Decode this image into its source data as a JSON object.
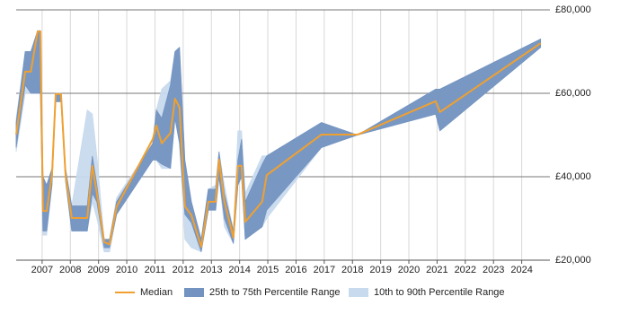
{
  "chart_data": {
    "type": "line",
    "x": [
      2006.08,
      2006.4,
      2006.6,
      2006.84,
      2006.94,
      2007.03,
      2007.16,
      2007.35,
      2007.48,
      2007.67,
      2007.83,
      2008.05,
      2008.6,
      2008.78,
      2008.94,
      2009.2,
      2009.39,
      2009.64,
      2010.92,
      2011.05,
      2011.24,
      2011.55,
      2011.71,
      2011.87,
      2012.06,
      2012.29,
      2012.64,
      2012.89,
      2013.15,
      2013.27,
      2013.46,
      2013.78,
      2013.94,
      2014.07,
      2014.2,
      2014.8,
      2014.96,
      2016.9,
      2018.18,
      2020.95,
      2021.1,
      2024.67
    ],
    "series": [
      {
        "name": "Median",
        "color": "#f0a030",
        "values": [
          50100,
          65200,
          65200,
          74800,
          74800,
          31800,
          31800,
          40400,
          59800,
          59800,
          40400,
          30100,
          30100,
          42600,
          36100,
          24300,
          23800,
          32800,
          49000,
          52300,
          48000,
          50500,
          58700,
          56600,
          32900,
          30800,
          23200,
          34000,
          34000,
          44100,
          34000,
          25400,
          42600,
          42600,
          29200,
          34000,
          40400,
          50100,
          50100,
          58100,
          55500,
          72000
        ]
      },
      {
        "name": "25th to 75th Percentile Range",
        "color": "#7393c0",
        "low": [
          47000,
          62000,
          60000,
          60000,
          60000,
          27000,
          27000,
          38000,
          58000,
          58000,
          39000,
          27000,
          27000,
          36000,
          34000,
          23000,
          23000,
          31000,
          44000,
          44000,
          43000,
          42000,
          54000,
          48000,
          31000,
          29000,
          22000,
          32000,
          32000,
          40000,
          30000,
          24000,
          38000,
          40000,
          25000,
          28000,
          32000,
          47000,
          50000,
          55000,
          51000,
          71000
        ],
        "high": [
          53000,
          70000,
          70000,
          75000,
          75000,
          40000,
          38000,
          42000,
          60000,
          60000,
          42000,
          33000,
          33000,
          45000,
          38000,
          25000,
          25000,
          34000,
          48000,
          56000,
          54000,
          62000,
          70000,
          71000,
          44000,
          34000,
          25000,
          37000,
          37000,
          46000,
          36000,
          27000,
          44000,
          49000,
          34000,
          43000,
          45000,
          53000,
          50000,
          61000,
          61000,
          73000
        ]
      },
      {
        "name": "10th to 90th Percentile Range",
        "color": "#c8daee",
        "low": [
          46000,
          60000,
          60000,
          60000,
          60000,
          26000,
          26000,
          38000,
          58000,
          58000,
          39000,
          27000,
          27000,
          34000,
          30000,
          22000,
          22000,
          31000,
          44000,
          44000,
          42000,
          42000,
          54000,
          48000,
          25000,
          23000,
          22000,
          32000,
          32000,
          40000,
          28000,
          24000,
          38000,
          40000,
          25000,
          28000,
          30000,
          47000,
          50000,
          55000,
          51000,
          71000
        ],
        "high": [
          54000,
          70000,
          70000,
          75000,
          75000,
          40000,
          38000,
          42000,
          60000,
          60000,
          42000,
          33000,
          56000,
          55000,
          45000,
          25000,
          25000,
          35000,
          48000,
          56000,
          61000,
          63000,
          70000,
          71000,
          44000,
          34000,
          25000,
          37000,
          38000,
          46000,
          38000,
          27000,
          51000,
          51000,
          36000,
          45000,
          45000,
          53000,
          50000,
          61000,
          61000,
          73000
        ]
      }
    ],
    "xlim": [
      2006.08,
      2025
    ],
    "xticks": [
      2007,
      2008,
      2009,
      2010,
      2011,
      2012,
      2013,
      2014,
      2015,
      2016,
      2017,
      2018,
      2019,
      2020,
      2021,
      2022,
      2023,
      2024
    ],
    "ylim": [
      20000,
      80000
    ],
    "yticks": [
      {
        "value": 20000,
        "label": "£20,000"
      },
      {
        "value": 40000,
        "label": "£40,000"
      },
      {
        "value": 60000,
        "label": "£60,000"
      },
      {
        "value": 80000,
        "label": "£80,000"
      }
    ],
    "grid": true,
    "legend": "bottom"
  }
}
